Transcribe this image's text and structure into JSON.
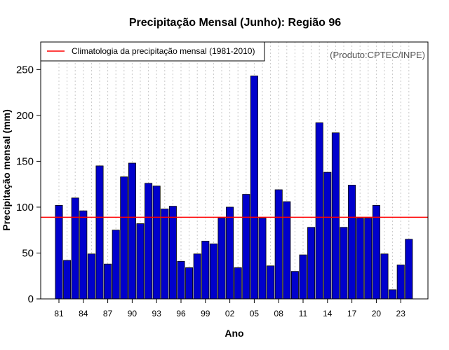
{
  "chart_data": {
    "type": "bar",
    "title": "Precipitação Mensal (Junho): Região 96",
    "xlabel": "Ano",
    "ylabel": "Precipitação mensal (mm)",
    "source": "(Produto:CPTEC/INPE)",
    "ylim": [
      0,
      280
    ],
    "yticks": [
      0,
      50,
      100,
      150,
      200,
      250
    ],
    "x_tick_labels": [
      "81",
      "84",
      "87",
      "90",
      "93",
      "96",
      "99",
      "02",
      "05",
      "08",
      "11",
      "14",
      "17",
      "20",
      "23"
    ],
    "categories": [
      "1981",
      "1982",
      "1983",
      "1984",
      "1985",
      "1986",
      "1987",
      "1988",
      "1989",
      "1990",
      "1991",
      "1992",
      "1993",
      "1994",
      "1995",
      "1996",
      "1997",
      "1998",
      "1999",
      "2000",
      "2001",
      "2002",
      "2003",
      "2004",
      "2005",
      "2006",
      "2007",
      "2008",
      "2009",
      "2010",
      "2011",
      "2012",
      "2013",
      "2014",
      "2015",
      "2016",
      "2017",
      "2018",
      "2019",
      "2020",
      "2021",
      "2022",
      "2023",
      "2024"
    ],
    "values": [
      102,
      42,
      110,
      96,
      49,
      145,
      38,
      75,
      133,
      148,
      82,
      126,
      123,
      98,
      101,
      41,
      34,
      49,
      63,
      60,
      88,
      100,
      34,
      114,
      243,
      88,
      36,
      119,
      106,
      30,
      48,
      78,
      192,
      138,
      181,
      78,
      124,
      88,
      88,
      102,
      49,
      10,
      37,
      65
    ],
    "bar_color": "#0000cc",
    "climatology": {
      "label": "Climatologia da precipitação mensal (1981-2010)",
      "value": 89,
      "color": "#ff0000"
    },
    "legend_position": "top-left",
    "grid": "vertical dotted"
  }
}
